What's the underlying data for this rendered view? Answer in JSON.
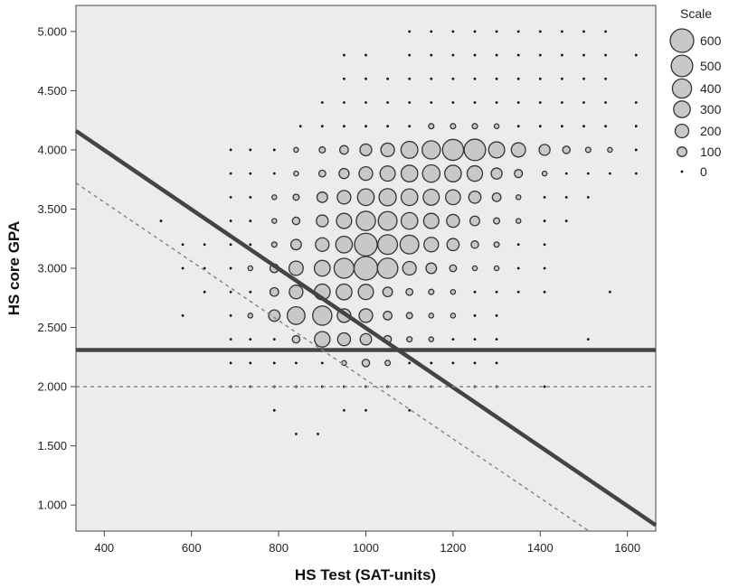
{
  "chart_data": {
    "type": "scatter",
    "xlabel": "HS Test (SAT-units)",
    "ylabel": "HS core GPA",
    "xlim": [
      335,
      1665
    ],
    "ylim": [
      0.78,
      5.22
    ],
    "x_ticks": [
      {
        "value": 400,
        "label": "400"
      },
      {
        "value": 600,
        "label": "600"
      },
      {
        "value": 800,
        "label": "800"
      },
      {
        "value": 1000,
        "label": "1000"
      },
      {
        "value": 1200,
        "label": "1200"
      },
      {
        "value": 1400,
        "label": "1400"
      },
      {
        "value": 1600,
        "label": "1600"
      }
    ],
    "y_ticks": [
      {
        "value": 1.0,
        "label": "1.000"
      },
      {
        "value": 1.5,
        "label": "1.500"
      },
      {
        "value": 2.0,
        "label": "2.000"
      },
      {
        "value": 2.5,
        "label": "2.500"
      },
      {
        "value": 3.0,
        "label": "3.000"
      },
      {
        "value": 3.5,
        "label": "3.500"
      },
      {
        "value": 4.0,
        "label": "4.000"
      },
      {
        "value": 4.5,
        "label": "4.500"
      },
      {
        "value": 5.0,
        "label": "5.000"
      }
    ],
    "grid": false,
    "legend": {
      "title": "Scale",
      "position": "right",
      "entries": [
        {
          "label": "600",
          "value": 600
        },
        {
          "label": "500",
          "value": 500
        },
        {
          "label": "400",
          "value": 400
        },
        {
          "label": "300",
          "value": 300
        },
        {
          "label": "200",
          "value": 200
        },
        {
          "label": "100",
          "value": 100
        },
        {
          "label": "0",
          "value": 0
        }
      ]
    },
    "points_columns": [
      "x",
      "y",
      "count"
    ],
    "points": [
      [
        1100,
        5.0,
        0
      ],
      [
        1150,
        5.0,
        0
      ],
      [
        1200,
        5.0,
        0
      ],
      [
        1250,
        5.0,
        0
      ],
      [
        1300,
        5.0,
        0
      ],
      [
        1350,
        5.0,
        0
      ],
      [
        1400,
        5.0,
        0
      ],
      [
        1450,
        5.0,
        0
      ],
      [
        1500,
        5.0,
        0
      ],
      [
        1550,
        5.0,
        0
      ],
      [
        950,
        4.8,
        0
      ],
      [
        1000,
        4.8,
        0
      ],
      [
        1100,
        4.8,
        0
      ],
      [
        1150,
        4.8,
        0
      ],
      [
        1200,
        4.8,
        0
      ],
      [
        1250,
        4.8,
        0
      ],
      [
        1300,
        4.8,
        0
      ],
      [
        1350,
        4.8,
        0
      ],
      [
        1400,
        4.8,
        0
      ],
      [
        1450,
        4.8,
        0
      ],
      [
        1500,
        4.8,
        0
      ],
      [
        1550,
        4.8,
        0
      ],
      [
        1620,
        4.8,
        0
      ],
      [
        950,
        4.6,
        0
      ],
      [
        1000,
        4.6,
        0
      ],
      [
        1050,
        4.6,
        0
      ],
      [
        1100,
        4.6,
        0
      ],
      [
        1150,
        4.6,
        0
      ],
      [
        1200,
        4.6,
        0
      ],
      [
        1250,
        4.6,
        0
      ],
      [
        1300,
        4.6,
        0
      ],
      [
        1350,
        4.6,
        0
      ],
      [
        1400,
        4.6,
        0
      ],
      [
        1450,
        4.6,
        0
      ],
      [
        1500,
        4.6,
        0
      ],
      [
        1550,
        4.6,
        0
      ],
      [
        900,
        4.4,
        0
      ],
      [
        950,
        4.4,
        0
      ],
      [
        1000,
        4.4,
        0
      ],
      [
        1050,
        4.4,
        0
      ],
      [
        1100,
        4.4,
        0
      ],
      [
        1150,
        4.4,
        0
      ],
      [
        1200,
        4.4,
        0
      ],
      [
        1250,
        4.4,
        0
      ],
      [
        1300,
        4.4,
        0
      ],
      [
        1350,
        4.4,
        0
      ],
      [
        1400,
        4.4,
        0
      ],
      [
        1450,
        4.4,
        0
      ],
      [
        1500,
        4.4,
        0
      ],
      [
        1550,
        4.4,
        0
      ],
      [
        1620,
        4.4,
        0
      ],
      [
        850,
        4.2,
        0
      ],
      [
        900,
        4.2,
        0
      ],
      [
        950,
        4.2,
        0
      ],
      [
        1000,
        4.2,
        0
      ],
      [
        1050,
        4.2,
        0
      ],
      [
        1100,
        4.2,
        0
      ],
      [
        1150,
        4.2,
        30
      ],
      [
        1200,
        4.2,
        30
      ],
      [
        1250,
        4.2,
        30
      ],
      [
        1300,
        4.2,
        10
      ],
      [
        1350,
        4.2,
        0
      ],
      [
        1400,
        4.2,
        0
      ],
      [
        1450,
        4.2,
        0
      ],
      [
        1500,
        4.2,
        0
      ],
      [
        1550,
        4.2,
        0
      ],
      [
        1620,
        4.2,
        0
      ],
      [
        690,
        4.0,
        0
      ],
      [
        735,
        4.0,
        0
      ],
      [
        790,
        4.0,
        0
      ],
      [
        840,
        4.0,
        20
      ],
      [
        900,
        4.0,
        40
      ],
      [
        950,
        4.0,
        80
      ],
      [
        1000,
        4.0,
        150
      ],
      [
        1050,
        4.0,
        200
      ],
      [
        1100,
        4.0,
        310
      ],
      [
        1150,
        4.0,
        360
      ],
      [
        1200,
        4.0,
        480
      ],
      [
        1250,
        4.0,
        500
      ],
      [
        1300,
        4.0,
        280
      ],
      [
        1350,
        4.0,
        220
      ],
      [
        1410,
        4.0,
        130
      ],
      [
        1460,
        4.0,
        60
      ],
      [
        1510,
        4.0,
        30
      ],
      [
        1560,
        4.0,
        10
      ],
      [
        1620,
        4.0,
        0
      ],
      [
        690,
        3.8,
        0
      ],
      [
        735,
        3.8,
        0
      ],
      [
        790,
        3.8,
        0
      ],
      [
        840,
        3.8,
        20
      ],
      [
        900,
        3.8,
        50
      ],
      [
        950,
        3.8,
        110
      ],
      [
        1000,
        3.8,
        200
      ],
      [
        1050,
        3.8,
        250
      ],
      [
        1100,
        3.8,
        300
      ],
      [
        1150,
        3.8,
        330
      ],
      [
        1200,
        3.8,
        300
      ],
      [
        1250,
        3.8,
        260
      ],
      [
        1300,
        3.8,
        130
      ],
      [
        1350,
        3.8,
        70
      ],
      [
        1410,
        3.8,
        20
      ],
      [
        1460,
        3.8,
        0
      ],
      [
        1510,
        3.8,
        0
      ],
      [
        1560,
        3.8,
        0
      ],
      [
        1620,
        3.8,
        0
      ],
      [
        690,
        3.6,
        0
      ],
      [
        735,
        3.6,
        0
      ],
      [
        790,
        3.6,
        10
      ],
      [
        840,
        3.6,
        40
      ],
      [
        900,
        3.6,
        120
      ],
      [
        950,
        3.6,
        200
      ],
      [
        1000,
        3.6,
        300
      ],
      [
        1050,
        3.6,
        320
      ],
      [
        1100,
        3.6,
        300
      ],
      [
        1150,
        3.6,
        280
      ],
      [
        1200,
        3.6,
        240
      ],
      [
        1250,
        3.6,
        160
      ],
      [
        1300,
        3.6,
        80
      ],
      [
        1350,
        3.6,
        20
      ],
      [
        1410,
        3.6,
        0
      ],
      [
        1460,
        3.6,
        0
      ],
      [
        1510,
        3.6,
        0
      ],
      [
        690,
        3.4,
        0
      ],
      [
        735,
        3.4,
        0
      ],
      [
        790,
        3.4,
        20
      ],
      [
        840,
        3.4,
        60
      ],
      [
        900,
        3.4,
        150
      ],
      [
        950,
        3.4,
        250
      ],
      [
        1000,
        3.4,
        400
      ],
      [
        1050,
        3.4,
        380
      ],
      [
        1100,
        3.4,
        300
      ],
      [
        1150,
        3.4,
        250
      ],
      [
        1200,
        3.4,
        180
      ],
      [
        1250,
        3.4,
        100
      ],
      [
        1300,
        3.4,
        40
      ],
      [
        1350,
        3.4,
        10
      ],
      [
        1410,
        3.4,
        0
      ],
      [
        1460,
        3.4,
        0
      ],
      [
        530,
        3.4,
        0
      ],
      [
        580,
        3.2,
        0
      ],
      [
        630,
        3.2,
        0
      ],
      [
        690,
        3.2,
        0
      ],
      [
        735,
        3.2,
        0
      ],
      [
        790,
        3.2,
        30
      ],
      [
        840,
        3.2,
        120
      ],
      [
        900,
        3.2,
        200
      ],
      [
        950,
        3.2,
        300
      ],
      [
        1000,
        3.2,
        560
      ],
      [
        1050,
        3.2,
        420
      ],
      [
        1100,
        3.2,
        380
      ],
      [
        1150,
        3.2,
        230
      ],
      [
        1200,
        3.2,
        160
      ],
      [
        1250,
        3.2,
        60
      ],
      [
        1300,
        3.2,
        30
      ],
      [
        1350,
        3.2,
        0
      ],
      [
        1410,
        3.2,
        0
      ],
      [
        580,
        3.0,
        0
      ],
      [
        630,
        3.0,
        0
      ],
      [
        690,
        3.0,
        0
      ],
      [
        735,
        3.0,
        20
      ],
      [
        790,
        3.0,
        80
      ],
      [
        840,
        3.0,
        220
      ],
      [
        900,
        3.0,
        270
      ],
      [
        950,
        3.0,
        430
      ],
      [
        1000,
        3.0,
        600
      ],
      [
        1050,
        3.0,
        450
      ],
      [
        1100,
        3.0,
        200
      ],
      [
        1150,
        3.0,
        120
      ],
      [
        1200,
        3.0,
        50
      ],
      [
        1250,
        3.0,
        20
      ],
      [
        1300,
        3.0,
        10
      ],
      [
        1350,
        3.0,
        0
      ],
      [
        1410,
        3.0,
        0
      ],
      [
        630,
        2.8,
        0
      ],
      [
        690,
        2.8,
        0
      ],
      [
        735,
        2.8,
        0
      ],
      [
        790,
        2.8,
        80
      ],
      [
        840,
        2.8,
        200
      ],
      [
        900,
        2.8,
        270
      ],
      [
        950,
        2.8,
        270
      ],
      [
        1000,
        2.8,
        250
      ],
      [
        1050,
        2.8,
        100
      ],
      [
        1100,
        2.8,
        50
      ],
      [
        1150,
        2.8,
        30
      ],
      [
        1200,
        2.8,
        10
      ],
      [
        1250,
        2.8,
        0
      ],
      [
        1300,
        2.8,
        0
      ],
      [
        1350,
        2.8,
        0
      ],
      [
        1410,
        2.8,
        0
      ],
      [
        1560,
        2.8,
        0
      ],
      [
        580,
        2.6,
        0
      ],
      [
        690,
        2.6,
        0
      ],
      [
        735,
        2.6,
        20
      ],
      [
        790,
        2.6,
        140
      ],
      [
        840,
        2.6,
        340
      ],
      [
        900,
        2.6,
        400
      ],
      [
        950,
        2.6,
        200
      ],
      [
        1000,
        2.6,
        200
      ],
      [
        1050,
        2.6,
        80
      ],
      [
        1100,
        2.6,
        40
      ],
      [
        1150,
        2.6,
        20
      ],
      [
        1200,
        2.6,
        10
      ],
      [
        1250,
        2.6,
        0
      ],
      [
        1300,
        2.6,
        0
      ],
      [
        690,
        2.4,
        0
      ],
      [
        735,
        2.4,
        0
      ],
      [
        790,
        2.4,
        0
      ],
      [
        840,
        2.4,
        60
      ],
      [
        900,
        2.4,
        260
      ],
      [
        950,
        2.4,
        180
      ],
      [
        1000,
        2.4,
        140
      ],
      [
        1050,
        2.4,
        60
      ],
      [
        1100,
        2.4,
        30
      ],
      [
        1150,
        2.4,
        10
      ],
      [
        1200,
        2.4,
        0
      ],
      [
        1250,
        2.4,
        0
      ],
      [
        1300,
        2.4,
        0
      ],
      [
        1510,
        2.4,
        0
      ],
      [
        690,
        2.2,
        0
      ],
      [
        735,
        2.2,
        0
      ],
      [
        790,
        2.2,
        0
      ],
      [
        840,
        2.2,
        0
      ],
      [
        900,
        2.2,
        0
      ],
      [
        950,
        2.2,
        10
      ],
      [
        1000,
        2.2,
        60
      ],
      [
        1050,
        2.2,
        30
      ],
      [
        1100,
        2.2,
        0
      ],
      [
        1150,
        2.2,
        0
      ],
      [
        1200,
        2.2,
        0
      ],
      [
        1250,
        2.2,
        0
      ],
      [
        1300,
        2.2,
        0
      ],
      [
        690,
        2.0,
        0
      ],
      [
        735,
        2.0,
        0
      ],
      [
        790,
        2.0,
        0
      ],
      [
        840,
        2.0,
        0
      ],
      [
        900,
        2.0,
        0
      ],
      [
        950,
        2.0,
        0
      ],
      [
        1000,
        2.0,
        0
      ],
      [
        1050,
        2.0,
        0
      ],
      [
        1100,
        2.0,
        0
      ],
      [
        1150,
        2.0,
        0
      ],
      [
        1200,
        2.0,
        0
      ],
      [
        1250,
        2.0,
        0
      ],
      [
        1300,
        2.0,
        0
      ],
      [
        1410,
        2.0,
        0
      ],
      [
        790,
        1.8,
        0
      ],
      [
        950,
        1.8,
        0
      ],
      [
        1000,
        1.8,
        0
      ],
      [
        1100,
        1.8,
        0
      ],
      [
        840,
        1.6,
        0
      ],
      [
        890,
        1.6,
        0
      ]
    ],
    "reference_lines": [
      {
        "style": "solid-thick",
        "from": [
          335,
          4.16
        ],
        "to": [
          1665,
          0.83
        ]
      },
      {
        "style": "solid-thick",
        "from": [
          335,
          2.31
        ],
        "to": [
          1665,
          2.31
        ]
      },
      {
        "style": "dashed",
        "from": [
          335,
          3.72
        ],
        "to": [
          1512,
          0.78
        ]
      },
      {
        "style": "dashed",
        "from": [
          335,
          2.0
        ],
        "to": [
          1665,
          2.0
        ]
      }
    ],
    "colors": {
      "plot_background": "#ececec",
      "bubble_fill": "#c8c8c8",
      "bubble_stroke": "#333333",
      "dot": "#111111",
      "line": "#444444",
      "dashed_line": "#888888"
    }
  }
}
